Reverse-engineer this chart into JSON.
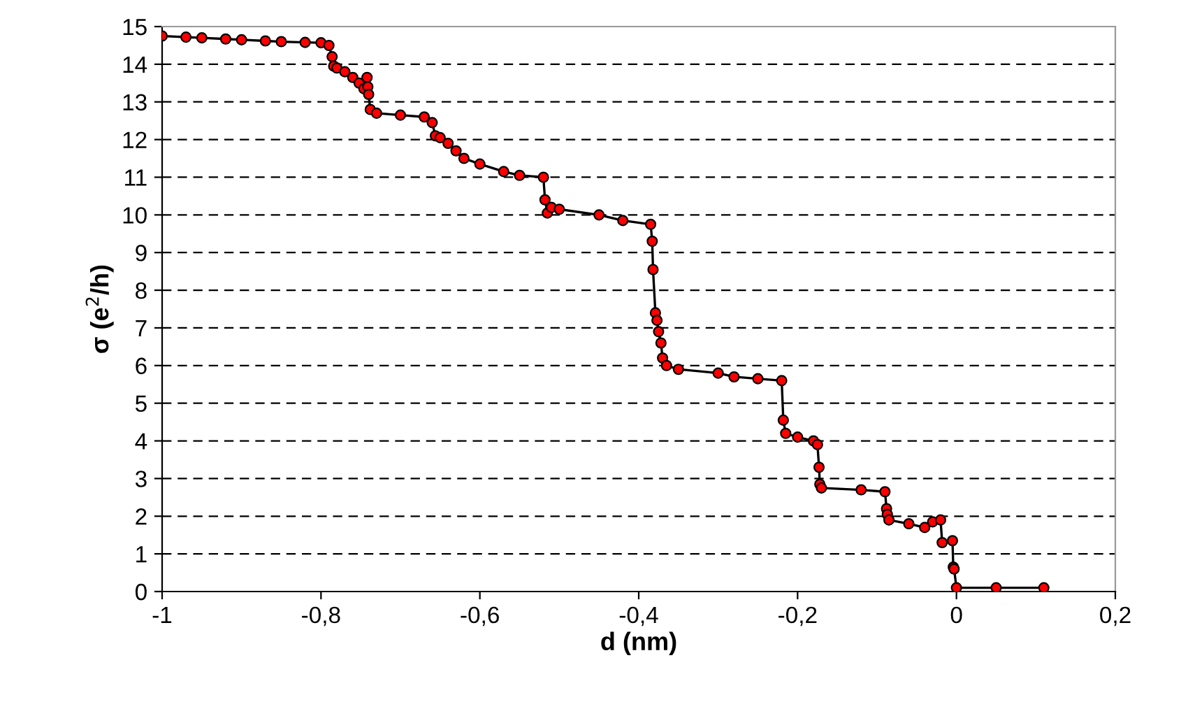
{
  "chart_data": {
    "type": "line",
    "xlabel": "d (nm)",
    "ylabel": "σ (e$^{2}$/h)",
    "xlim": [
      -1,
      0.2
    ],
    "xticks": [
      -1,
      {
        "value": -0.8,
        "label": "-0,8"
      },
      {
        "value": -0.6,
        "label": "-0,6"
      },
      {
        "value": -0.4,
        "label": "-0,4"
      },
      {
        "value": -0.2,
        "label": "-0,2"
      },
      0,
      {
        "value": 0.2,
        "label": "0,2"
      }
    ],
    "ylim": [
      0,
      15
    ],
    "yticks": [
      0,
      1,
      2,
      3,
      4,
      5,
      6,
      7,
      8,
      9,
      10,
      11,
      12,
      13,
      14,
      15
    ],
    "grid": "y",
    "legend": false,
    "marker": "circle",
    "line_style": "solid",
    "series": [
      {
        "color": "#ff0000",
        "x": [
          -1,
          -0.97,
          -0.95,
          -0.92,
          -0.9,
          -0.87,
          -0.85,
          -0.82,
          -0.8,
          -0.79,
          -0.786,
          -0.784,
          -0.78,
          -0.77,
          -0.76,
          -0.752,
          -0.746,
          -0.742,
          -0.741,
          -0.74,
          -0.738,
          -0.73,
          -0.7,
          -0.67,
          -0.66,
          -0.656,
          -0.65,
          -0.64,
          -0.63,
          -0.62,
          -0.6,
          -0.57,
          -0.55,
          -0.52,
          -0.518,
          -0.515,
          -0.51,
          -0.5,
          -0.45,
          -0.42,
          -0.385,
          -0.383,
          -0.382,
          -0.379,
          -0.377,
          -0.375,
          -0.372,
          -0.37,
          -0.365,
          -0.35,
          -0.3,
          -0.28,
          -0.25,
          -0.22,
          -0.218,
          -0.215,
          -0.2,
          -0.18,
          -0.175,
          -0.173,
          -0.172,
          -0.17,
          -0.12,
          -0.09,
          -0.088,
          -0.087,
          -0.085,
          -0.06,
          -0.04,
          -0.03,
          -0.02,
          -0.018,
          -0.005,
          -0.004,
          -0.003,
          0.0,
          0.05,
          0.11
        ],
        "values": [
          14.75,
          14.72,
          14.7,
          14.67,
          14.65,
          14.62,
          14.6,
          14.58,
          14.57,
          14.5,
          14.2,
          13.95,
          13.9,
          13.8,
          13.65,
          13.5,
          13.35,
          13.65,
          13.4,
          13.2,
          12.8,
          12.7,
          12.65,
          12.6,
          12.45,
          12.1,
          12.05,
          11.9,
          11.7,
          11.5,
          11.35,
          11.15,
          11.05,
          11.0,
          10.4,
          10.05,
          10.2,
          10.15,
          10.0,
          9.85,
          9.75,
          9.3,
          8.55,
          7.4,
          7.2,
          6.9,
          6.6,
          6.2,
          6.0,
          5.9,
          5.8,
          5.7,
          5.65,
          5.6,
          4.55,
          4.2,
          4.1,
          4.0,
          3.9,
          3.3,
          2.85,
          2.75,
          2.7,
          2.65,
          2.2,
          2.05,
          1.9,
          1.8,
          1.7,
          1.85,
          1.9,
          1.3,
          1.35,
          0.65,
          0.6,
          0.1,
          0.1,
          0.1
        ]
      }
    ]
  }
}
